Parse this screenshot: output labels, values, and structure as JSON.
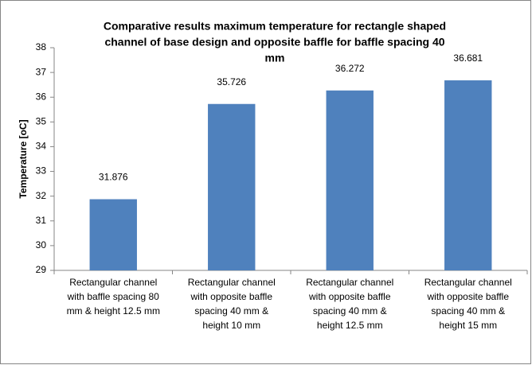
{
  "chart_data": {
    "type": "bar",
    "title": [
      "Comparative results maximum temperature for rectangle shaped",
      "channel of base design and opposite baffle for baffle spacing 40",
      "mm"
    ],
    "y_label": "Temperature [oC]",
    "categories": [
      [
        "Rectangular channel",
        "with baffle spacing 80",
        "mm & height 12.5 mm"
      ],
      [
        "Rectangular channel",
        "with opposite baffle",
        "spacing 40 mm &",
        "height 10 mm"
      ],
      [
        "Rectangular channel",
        "with opposite baffle",
        "spacing 40 mm &",
        "height 12.5 mm"
      ],
      [
        "Rectangular channel",
        "with opposite baffle",
        "spacing 40 mm &",
        "height 15 mm"
      ]
    ],
    "values": [
      31.876,
      35.726,
      36.272,
      36.681
    ],
    "color": "#4f81bd",
    "ylim": [
      29,
      38
    ],
    "yticks": [
      29,
      30,
      31,
      32,
      33,
      34,
      35,
      36,
      37,
      38
    ],
    "grid": false
  }
}
